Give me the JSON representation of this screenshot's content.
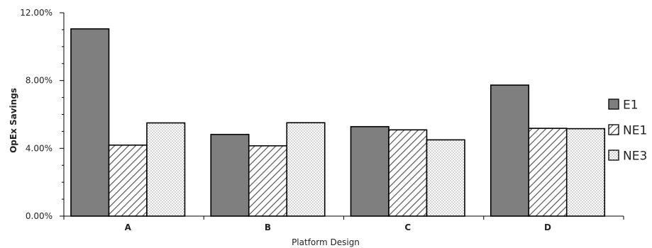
{
  "chart_data": {
    "type": "bar",
    "xlabel": "Platform Design",
    "ylabel": "OpEx Savings",
    "categories": [
      "A",
      "B",
      "C",
      "D"
    ],
    "series": [
      {
        "name": "E1",
        "values": [
          0.1105,
          0.0482,
          0.0528,
          0.0773
        ],
        "fill": "#7f7f7f",
        "pattern": "solid"
      },
      {
        "name": "NE1",
        "values": [
          0.0419,
          0.0415,
          0.0509,
          0.0518
        ],
        "fill": "#ffffff",
        "pattern": "diagonal-hatch"
      },
      {
        "name": "NE3",
        "values": [
          0.055,
          0.0551,
          0.045,
          0.0516
        ],
        "fill": "#ffffff",
        "pattern": "dots"
      }
    ],
    "ylim": [
      0,
      0.12
    ],
    "yticks": [
      0,
      0.04,
      0.08,
      0.12
    ],
    "ytick_labels": [
      "0.00%",
      "4.00%",
      "8.00%",
      "12.00%"
    ],
    "minor_ticks_per_major": 4,
    "grid": false,
    "legend": "right"
  }
}
